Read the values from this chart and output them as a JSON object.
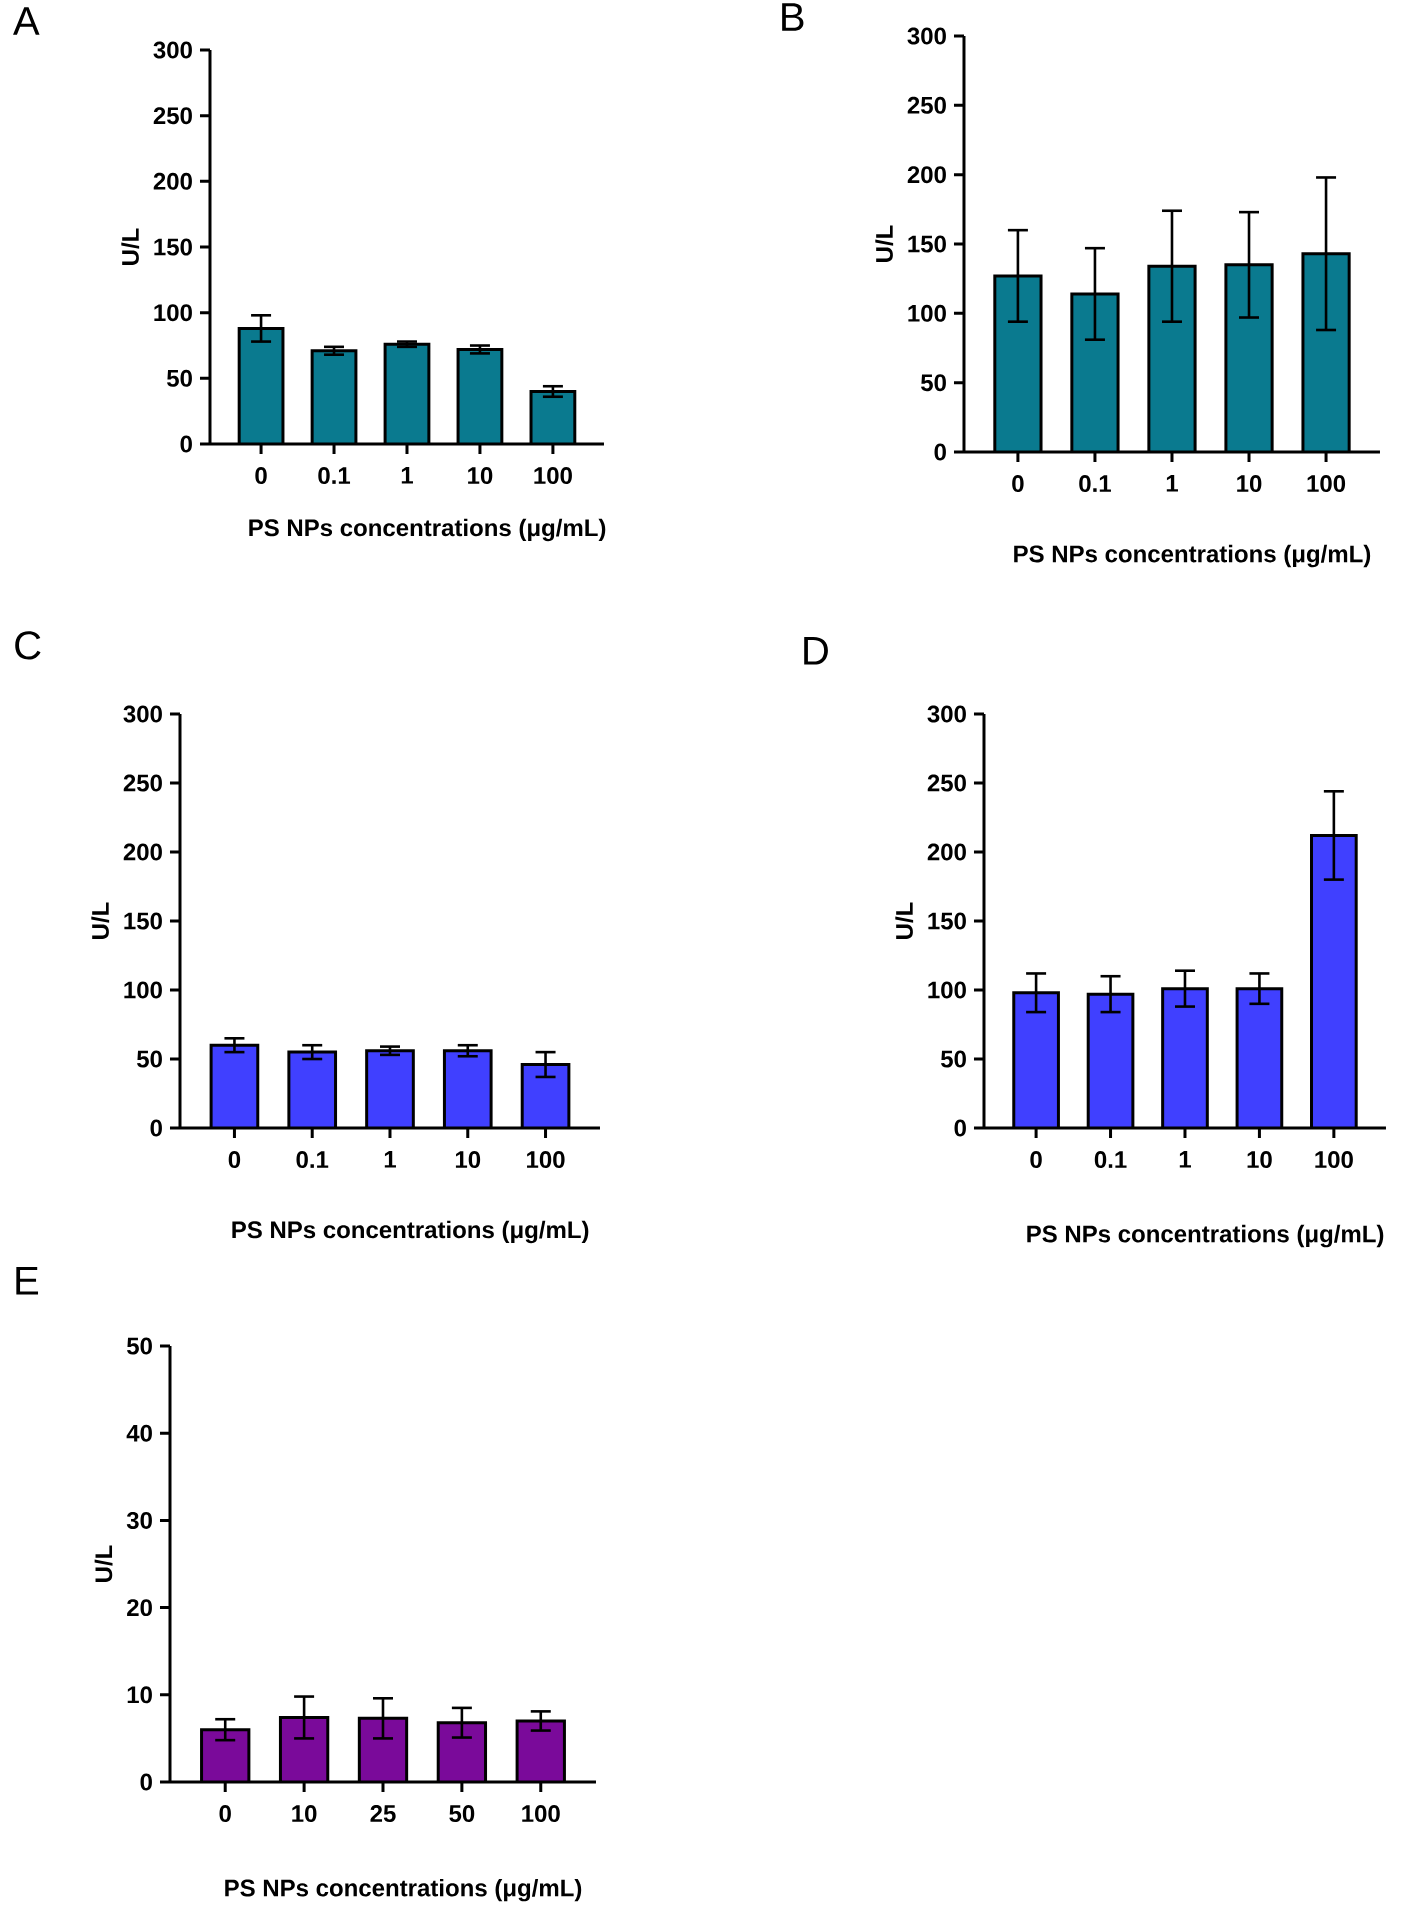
{
  "chart_data": [
    {
      "type": "bar",
      "title": "A",
      "xlabel": "PS NPs concentrations (μg/mL)",
      "ylabel": "U/L",
      "categories": [
        "0",
        "0.1",
        "1",
        "10",
        "100"
      ],
      "values": [
        88,
        71,
        76,
        72,
        40
      ],
      "errors": [
        10,
        3,
        2,
        3,
        4
      ],
      "color": "#0a7a8f",
      "ylim": [
        0,
        300
      ],
      "yticks": [
        0,
        50,
        100,
        150,
        200,
        250,
        300
      ]
    },
    {
      "type": "bar",
      "title": "B",
      "xlabel": "PS NPs concentrations (μg/mL)",
      "ylabel": "U/L",
      "categories": [
        "0",
        "0.1",
        "1",
        "10",
        "100"
      ],
      "values": [
        127,
        114,
        134,
        135,
        143
      ],
      "errors": [
        33,
        33,
        40,
        38,
        55
      ],
      "color": "#0a7a8f",
      "ylim": [
        0,
        300
      ],
      "yticks": [
        0,
        50,
        100,
        150,
        200,
        250,
        300
      ]
    },
    {
      "type": "bar",
      "title": "C",
      "xlabel": "PS NPs concentrations (μg/mL)",
      "ylabel": "U/L",
      "categories": [
        "0",
        "0.1",
        "1",
        "10",
        "100"
      ],
      "values": [
        60,
        55,
        56,
        56,
        46
      ],
      "errors": [
        5,
        5,
        3,
        4,
        9
      ],
      "color": "#4040ff",
      "ylim": [
        0,
        300
      ],
      "yticks": [
        0,
        50,
        100,
        150,
        200,
        250,
        300
      ]
    },
    {
      "type": "bar",
      "title": "D",
      "xlabel": "PS NPs concentrations (μg/mL)",
      "ylabel": "U/L",
      "categories": [
        "0",
        "0.1",
        "1",
        "10",
        "100"
      ],
      "values": [
        98,
        97,
        101,
        101,
        212
      ],
      "errors": [
        14,
        13,
        13,
        11,
        32
      ],
      "color": "#4040ff",
      "ylim": [
        0,
        300
      ],
      "yticks": [
        0,
        50,
        100,
        150,
        200,
        250,
        300
      ]
    },
    {
      "type": "bar",
      "title": "E",
      "xlabel": "PS NPs concentrations (μg/mL)",
      "ylabel": "U/L",
      "categories": [
        "0",
        "10",
        "25",
        "50",
        "100"
      ],
      "values": [
        6.0,
        7.4,
        7.3,
        6.8,
        7.0
      ],
      "errors": [
        1.2,
        2.4,
        2.3,
        1.7,
        1.1
      ],
      "color": "#7a0a9a",
      "ylim": [
        0,
        50
      ],
      "yticks": [
        0,
        10,
        20,
        30,
        40,
        50
      ]
    }
  ]
}
